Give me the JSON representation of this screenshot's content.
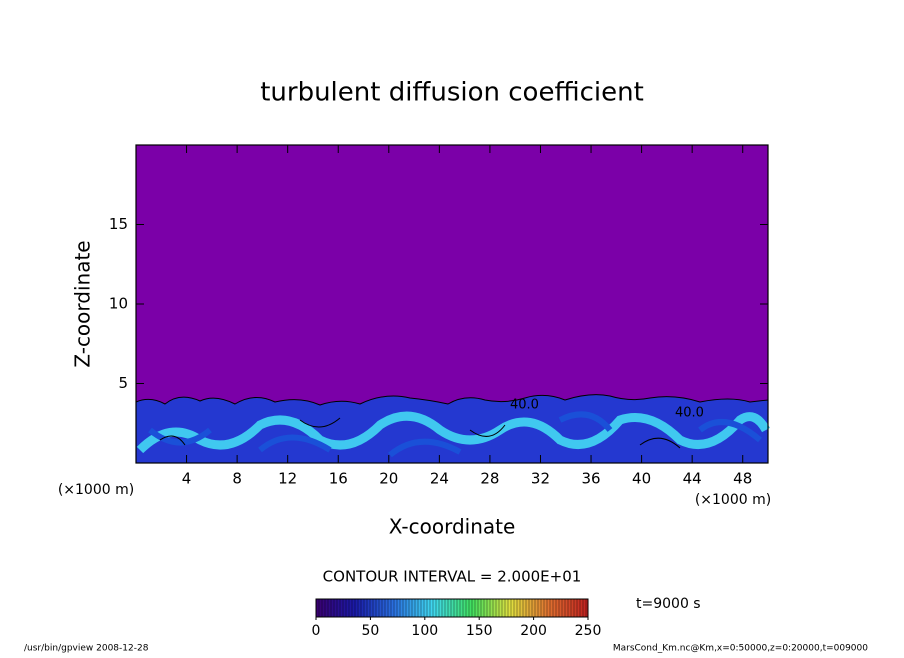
{
  "chart_data": {
    "type": "contour",
    "title": "turbulent diffusion coefficient",
    "x_label": "X-coordinate",
    "y_label": "Z-coordinate",
    "x_unit": "(×1000 m)",
    "y_unit": "(×1000 m)",
    "xlim": [
      0,
      50
    ],
    "ylim": [
      0,
      20
    ],
    "xticks": [
      4,
      8,
      12,
      16,
      20,
      24,
      28,
      32,
      36,
      40,
      44,
      48
    ],
    "yticks": [
      5,
      10,
      15
    ],
    "field_color": "#7b00a8",
    "contour_interval": "CONTOUR INTERVAL = 2.000E+01",
    "contour_labels": [
      "40.0",
      "40.0"
    ],
    "time_label": "t=9000 s",
    "colorbar": {
      "lim": [
        0,
        250
      ],
      "ticks": [
        0,
        50,
        100,
        150,
        200,
        250
      ],
      "colors": [
        "#3a0070",
        "#1a1aa8",
        "#2a70e0",
        "#40d8f0",
        "#40e060",
        "#e0e040",
        "#e07030",
        "#c02020"
      ]
    }
  },
  "footer": {
    "left": "/usr/bin/gpview   2008-12-28",
    "right": "MarsCond_Km.nc@Km,x=0:50000,z=0:20000,t=009000"
  }
}
